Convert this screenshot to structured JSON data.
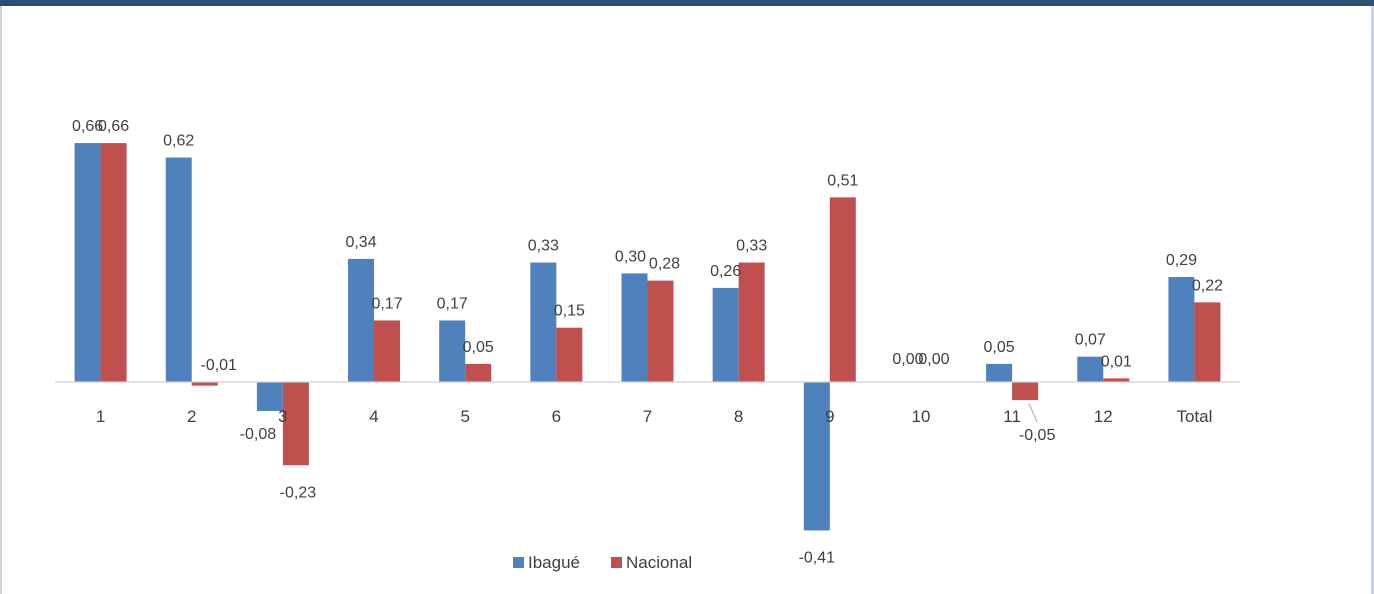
{
  "chart_data": {
    "type": "bar",
    "categories": [
      "1",
      "2",
      "3",
      "4",
      "5",
      "6",
      "7",
      "8",
      "9",
      "10",
      "11",
      "12",
      "Total"
    ],
    "series": [
      {
        "name": "Ibagué",
        "color": "#4f81bd",
        "values": [
          0.66,
          0.62,
          -0.08,
          0.34,
          0.17,
          0.33,
          0.3,
          0.26,
          -0.41,
          0.0,
          0.05,
          0.07,
          0.29
        ],
        "labels": [
          "0,66",
          "0,62",
          "-0,08",
          "0,34",
          "0,17",
          "0,33",
          "0,30",
          "0,26",
          "-0,41",
          "0,00",
          "0,05",
          "0,07",
          "0,29"
        ]
      },
      {
        "name": "Nacional",
        "color": "#c0504d",
        "values": [
          0.66,
          -0.01,
          -0.23,
          0.17,
          0.05,
          0.15,
          0.28,
          0.33,
          0.51,
          0.0,
          -0.05,
          0.01,
          0.22
        ],
        "labels": [
          "0,66",
          "-0,01",
          "-0,23",
          "0,17",
          "0,05",
          "0,15",
          "0,28",
          "0,33",
          "0,51",
          "0,00",
          "-0,05",
          "0,01",
          "0,22"
        ]
      }
    ],
    "title": "",
    "xlabel": "",
    "ylabel": "",
    "ylim": [
      -0.41,
      0.66
    ],
    "grid": false,
    "legend": "bottom-center",
    "header_band_color": "#2f4d73"
  }
}
